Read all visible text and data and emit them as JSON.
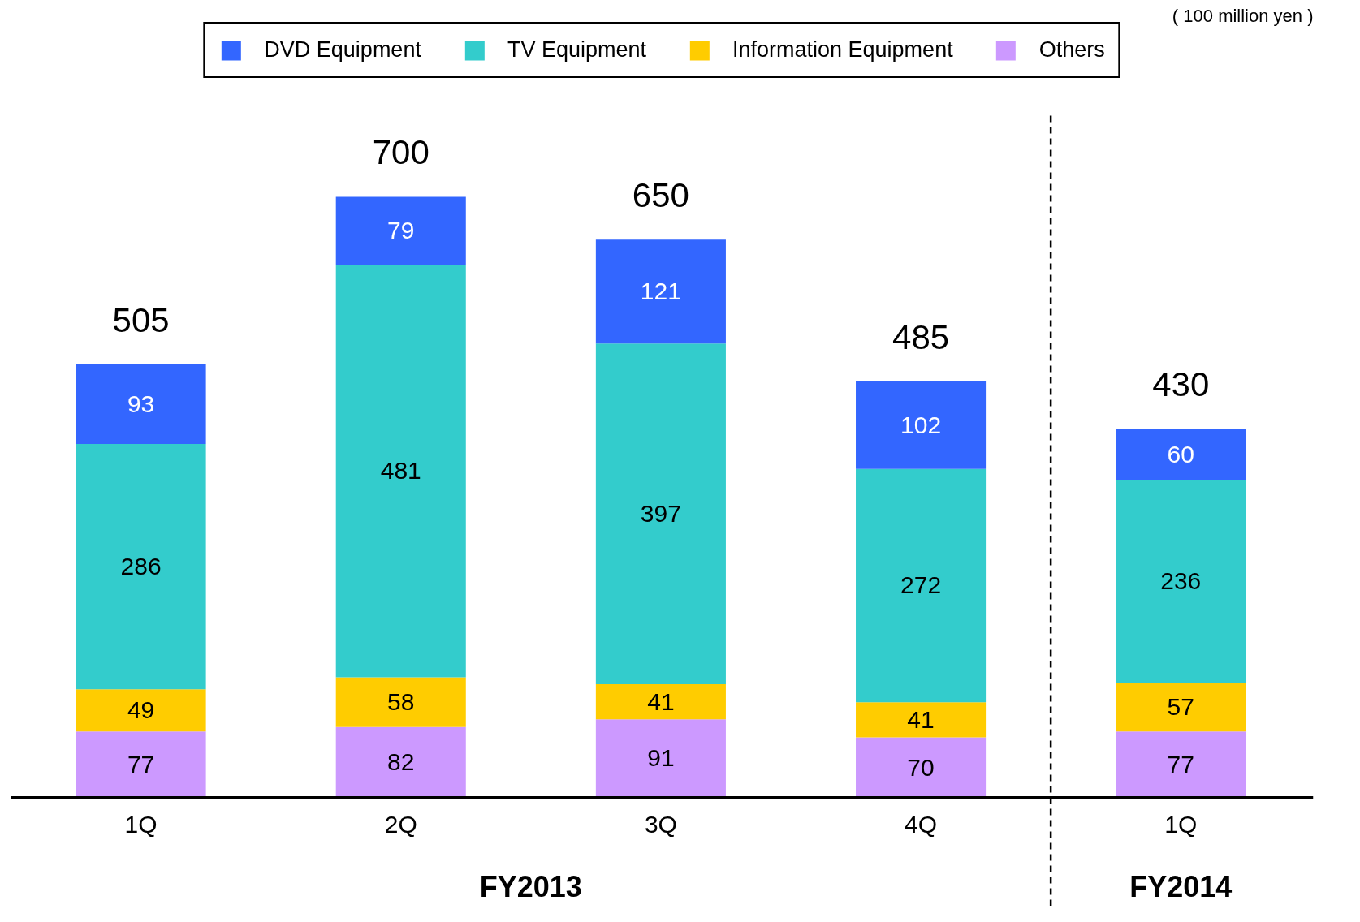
{
  "chart_data": {
    "type": "bar",
    "stacked": true,
    "categories": [
      "1Q",
      "2Q",
      "3Q",
      "4Q",
      "1Q"
    ],
    "series": [
      {
        "name": "Others",
        "color": "#cc99ff",
        "values": [
          77,
          82,
          91,
          70,
          77
        ]
      },
      {
        "name": "Information Equipment",
        "color": "#ffcc00",
        "values": [
          49,
          58,
          41,
          41,
          57
        ]
      },
      {
        "name": "TV Equipment",
        "color": "#33cccc",
        "values": [
          286,
          481,
          397,
          272,
          236
        ]
      },
      {
        "name": "DVD Equipment",
        "color": "#3366ff",
        "values": [
          93,
          79,
          121,
          102,
          60
        ]
      }
    ],
    "data_labels": true,
    "totals": [
      "505",
      "700",
      "650",
      "485",
      "430"
    ],
    "legend": "top",
    "grid": false,
    "tick_labels": "x",
    "annotations": [
      "( 100 million yen )",
      "FY2013",
      "FY2014"
    ]
  }
}
